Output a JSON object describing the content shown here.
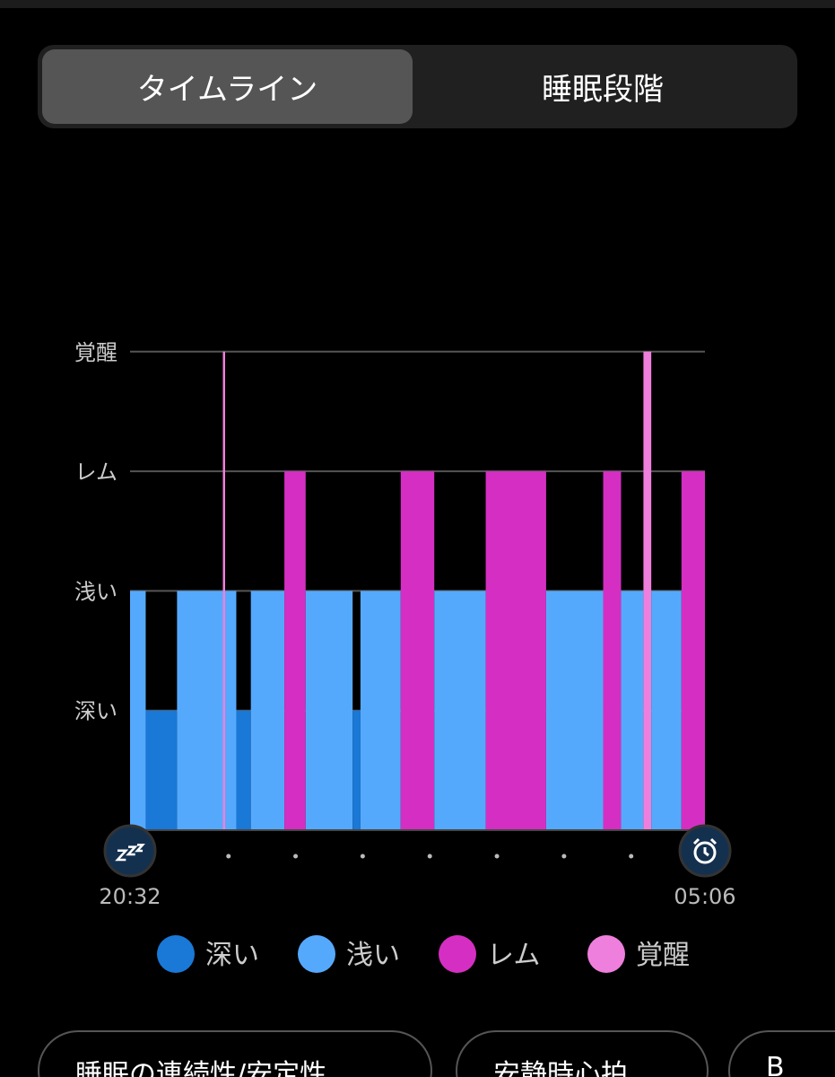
{
  "tabs": [
    "タイムライン",
    "睡眠段階"
  ],
  "chart_data": {
    "type": "sleep-timeline",
    "stages": [
      "深い",
      "浅い",
      "レム",
      "覚醒"
    ],
    "series": [
      {
        "name": "深い",
        "color": "#1a78d6"
      },
      {
        "name": "浅い",
        "color": "#55a9fc"
      },
      {
        "name": "レム",
        "color": "#d42fc2"
      },
      {
        "name": "覚醒",
        "color": "#ee7fdc"
      }
    ],
    "segments": [
      {
        "stage": 1,
        "start": 0,
        "end": 14
      },
      {
        "stage": 0,
        "start": 14,
        "end": 42
      },
      {
        "stage": 1,
        "start": 42,
        "end": 83
      },
      {
        "stage": 3,
        "start": 83,
        "end": 85
      },
      {
        "stage": 1,
        "start": 85,
        "end": 95
      },
      {
        "stage": 0,
        "start": 95,
        "end": 108
      },
      {
        "stage": 1,
        "start": 108,
        "end": 138
      },
      {
        "stage": 2,
        "start": 138,
        "end": 157
      },
      {
        "stage": 1,
        "start": 157,
        "end": 199
      },
      {
        "stage": 0,
        "start": 199,
        "end": 206
      },
      {
        "stage": 1,
        "start": 206,
        "end": 242
      },
      {
        "stage": 2,
        "start": 242,
        "end": 272
      },
      {
        "stage": 1,
        "start": 272,
        "end": 318
      },
      {
        "stage": 2,
        "start": 318,
        "end": 372
      },
      {
        "stage": 1,
        "start": 372,
        "end": 423
      },
      {
        "stage": 2,
        "start": 423,
        "end": 439
      },
      {
        "stage": 1,
        "start": 439,
        "end": 459
      },
      {
        "stage": 3,
        "start": 459,
        "end": 466
      },
      {
        "stage": 1,
        "start": 466,
        "end": 493
      },
      {
        "stage": 2,
        "start": 493,
        "end": 514
      }
    ],
    "xlim": [
      0,
      514
    ],
    "xticks": [
      {
        "value": 0,
        "label": "20:32"
      },
      {
        "value": 514,
        "label": "05:06"
      }
    ],
    "xminorticks": [
      88,
      148,
      208,
      268,
      328,
      388,
      448
    ],
    "grid": true
  },
  "buttons": [
    "睡眠の連続性/安定性",
    "安静時心拍",
    "B"
  ]
}
